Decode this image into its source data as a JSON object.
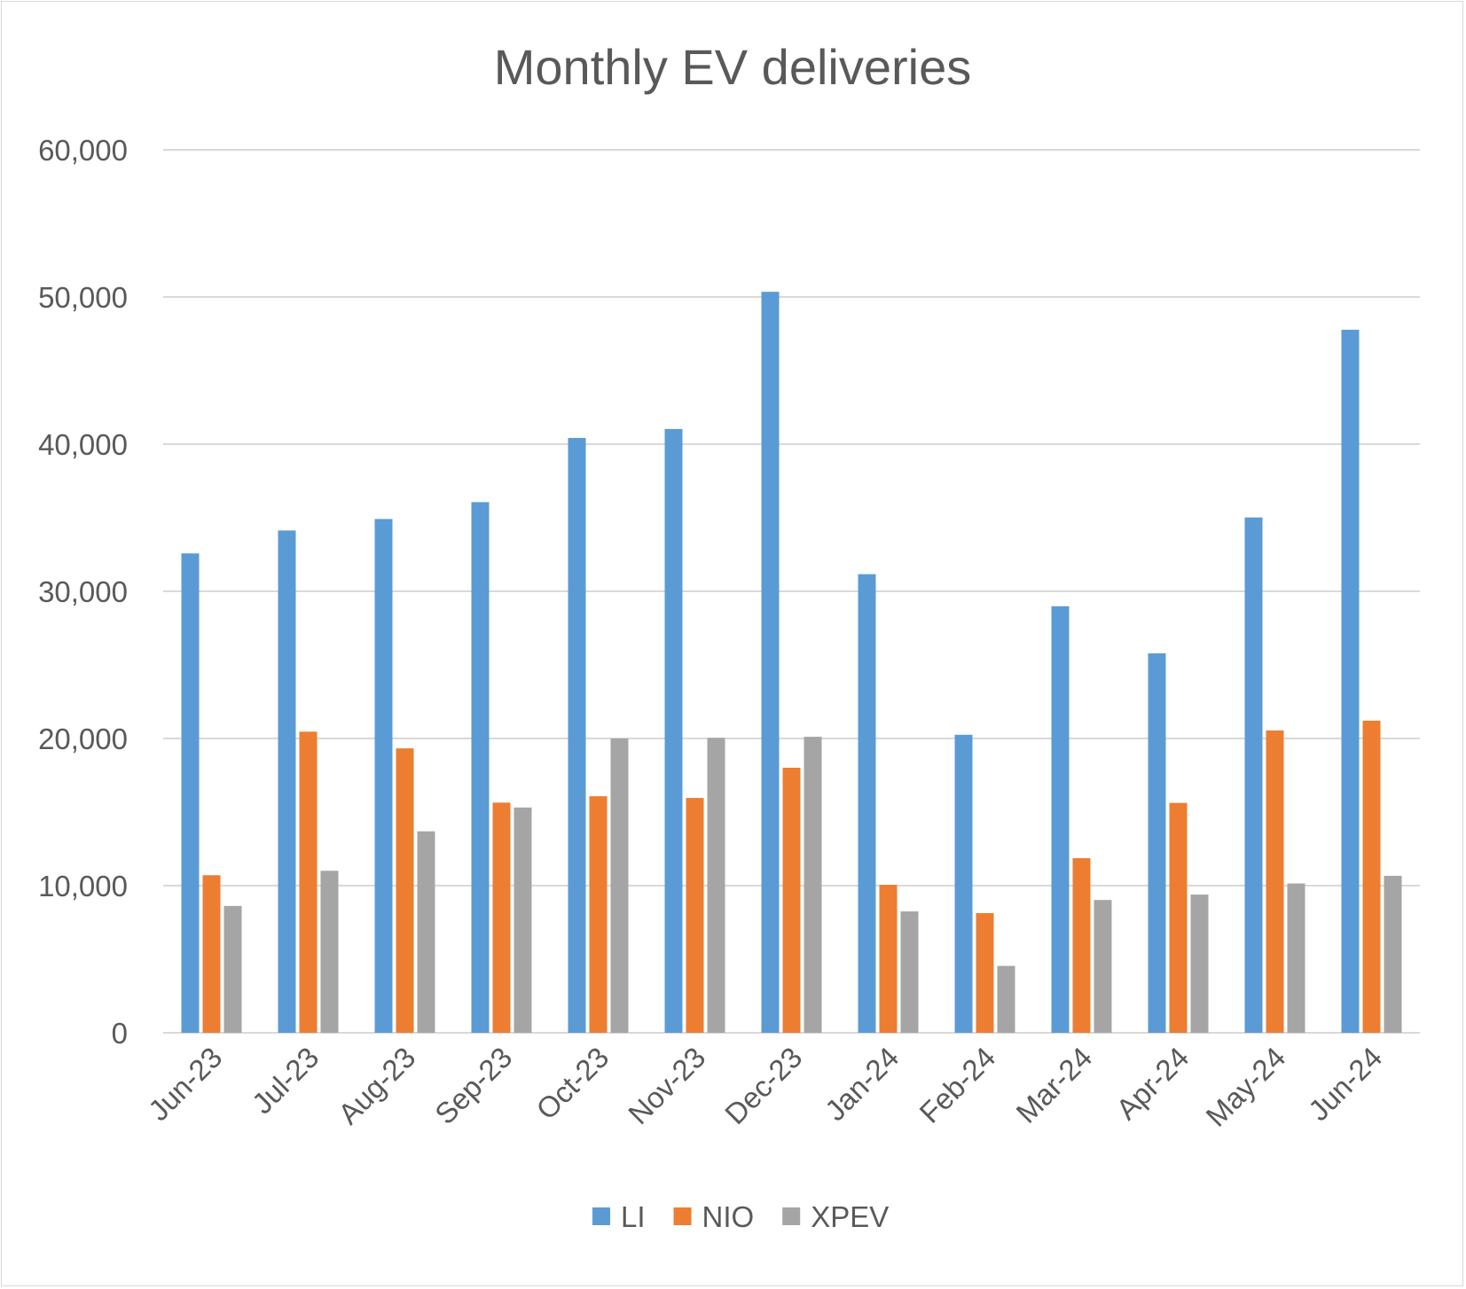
{
  "colors": {
    "LI": "#5b9bd5",
    "NIO": "#ed7d31",
    "XPEV": "#a5a5a5",
    "grid": "#d9d9d9",
    "text": "#595959"
  },
  "chart_data": {
    "type": "bar",
    "title": "Monthly EV deliveries",
    "xlabel": "",
    "ylabel": "",
    "ylim": [
      0,
      60000
    ],
    "yticks": [
      0,
      10000,
      20000,
      30000,
      40000,
      50000,
      60000
    ],
    "ytick_labels": [
      "0",
      "10,000",
      "20,000",
      "30,000",
      "40,000",
      "50,000",
      "60,000"
    ],
    "grid": true,
    "legend_position": "bottom",
    "categories": [
      "Jun-23",
      "Jul-23",
      "Aug-23",
      "Sep-23",
      "Oct-23",
      "Nov-23",
      "Dec-23",
      "Jan-24",
      "Feb-24",
      "Mar-24",
      "Apr-24",
      "May-24",
      "Jun-24"
    ],
    "series": [
      {
        "name": "LI",
        "color": "#5b9bd5",
        "values": [
          32575,
          34134,
          34914,
          36060,
          40422,
          41030,
          50353,
          31165,
          20251,
          28984,
          25787,
          35020,
          47774
        ]
      },
      {
        "name": "NIO",
        "color": "#ed7d31",
        "values": [
          10707,
          20462,
          19329,
          15641,
          16074,
          15959,
          18012,
          10055,
          8132,
          11866,
          15620,
          20544,
          21209
        ]
      },
      {
        "name": "XPEV",
        "color": "#a5a5a5",
        "values": [
          8620,
          11008,
          13690,
          15310,
          20002,
          20041,
          20115,
          8250,
          4545,
          9026,
          9393,
          10146,
          10668
        ]
      }
    ]
  }
}
